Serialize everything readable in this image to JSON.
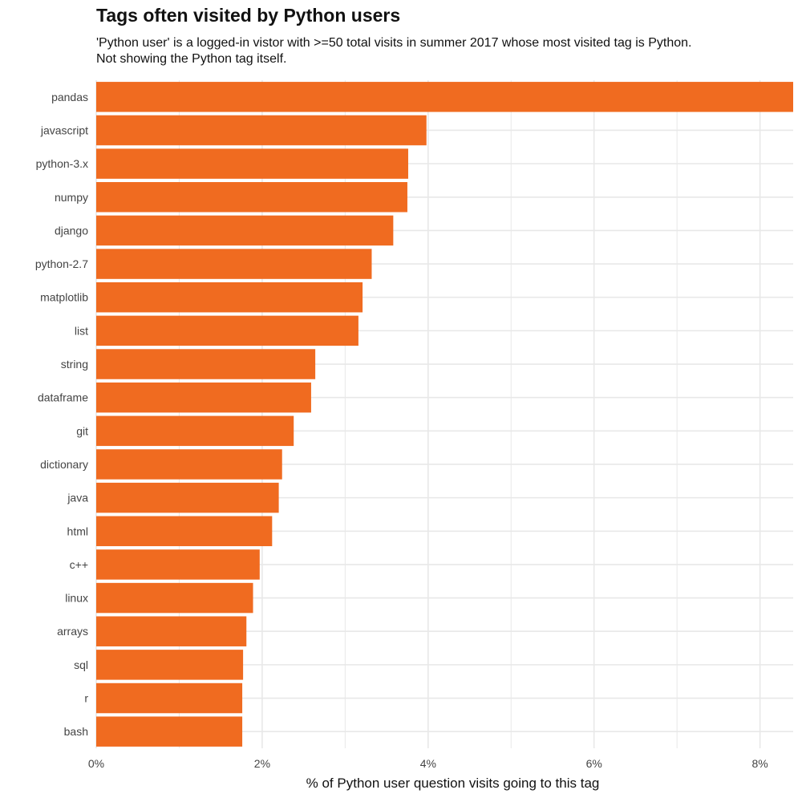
{
  "chart_data": {
    "type": "bar",
    "orientation": "horizontal",
    "title": "Tags often visited by Python users",
    "subtitle_lines": [
      "'Python user' is a logged-in vistor with >=50 total visits in summer 2017 whose most visited tag is Python.",
      "Not showing the Python tag itself."
    ],
    "xlabel": "% of Python user question visits going to this tag",
    "ylabel": "",
    "categories": [
      "pandas",
      "javascript",
      "python-3.x",
      "numpy",
      "django",
      "python-2.7",
      "matplotlib",
      "list",
      "string",
      "dataframe",
      "git",
      "dictionary",
      "java",
      "html",
      "c++",
      "linux",
      "arrays",
      "sql",
      "r",
      "bash"
    ],
    "values": [
      8.4,
      3.98,
      3.76,
      3.75,
      3.58,
      3.32,
      3.21,
      3.16,
      2.64,
      2.59,
      2.38,
      2.24,
      2.2,
      2.12,
      1.97,
      1.89,
      1.81,
      1.77,
      1.76,
      1.76
    ],
    "xlim": [
      0,
      8.4
    ],
    "xticks": [
      0,
      2,
      4,
      6,
      8
    ],
    "xtick_labels": [
      "0%",
      "2%",
      "4%",
      "6%",
      "8%"
    ],
    "grid": true,
    "bar_color": "#f06b20",
    "grid_color": "#e8e8e8"
  }
}
